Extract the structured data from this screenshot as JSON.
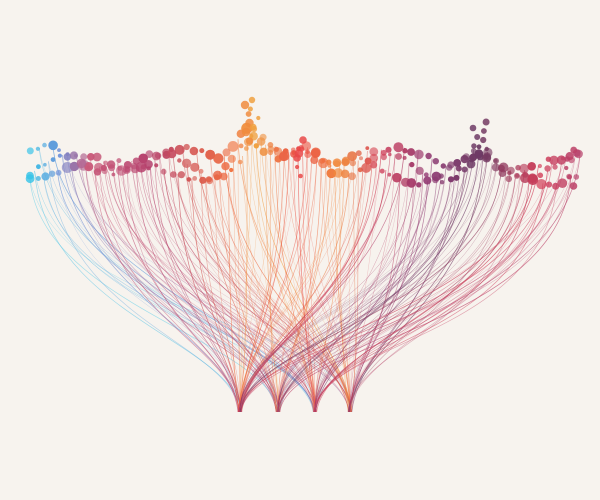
{
  "artwork": {
    "background": "#f7f3ee",
    "palette": [
      "#35c3e7",
      "#4a8fd8",
      "#6b5fb8",
      "#8f3a73",
      "#b43f6b",
      "#d23d57",
      "#e94848",
      "#f06b3c",
      "#f28c3a",
      "#f0a040"
    ],
    "strand_count": 120,
    "dot_rows": 3,
    "sink_count": 4
  }
}
